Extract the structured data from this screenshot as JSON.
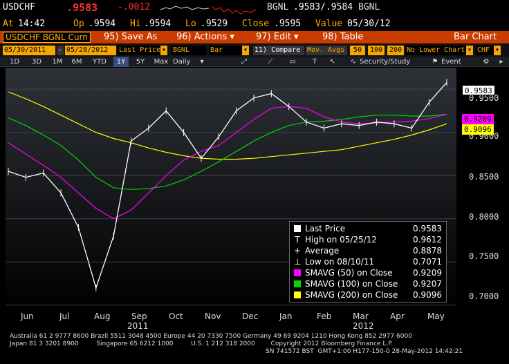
{
  "header": {
    "ticker": "USDCHF",
    "price": ".9583",
    "change": "-.0012",
    "source": "BGNL",
    "bid_ask": ".9583/.9584",
    "source2": "BGNL"
  },
  "quote_line": {
    "at_label": "At",
    "at_value": "14:42",
    "op_label": "Op",
    "op_value": ".9594",
    "hi_label": "Hi",
    "hi_value": ".9594",
    "lo_label": "Lo",
    "lo_value": ".9529",
    "close_label": "Close",
    "close_value": ".9595",
    "value_label": "Value",
    "value_value": "05/30/12"
  },
  "menubar": {
    "title": "USDCHF BGNL Curn",
    "save_as": "95) Save As",
    "actions": "96) Actions ▾",
    "edit": "97) Edit ▾",
    "table": "98) Table",
    "bar_chart": "Bar Chart"
  },
  "options": {
    "start_date": "05/30/2011",
    "end_date": "05/28/2012",
    "field": "Last Price",
    "source": "BGNL",
    "style": "Bar",
    "compare": "11) Compare",
    "mov_avgs": "Mov. Avgs",
    "ma1": "50",
    "ma2": "100",
    "ma3": "200",
    "lower_chart": "No Lower Chart",
    "currency": "CHF"
  },
  "range_tabs": [
    "1D",
    "3D",
    "1M",
    "6M",
    "YTD",
    "1Y",
    "5Y",
    "Max"
  ],
  "range_selected": "1Y",
  "period": "Daily",
  "tools": {
    "security_study": "Security/Study",
    "event": "Event"
  },
  "y_axis": {
    "ticks": [
      "0.9500",
      "0.9000",
      "0.8500",
      "0.8000",
      "0.7500",
      "0.7000"
    ],
    "last_label": "0.9583",
    "ma50_label": "0.9209",
    "ma200_label": "0.9096"
  },
  "x_axis": {
    "months": [
      "Jun",
      "Jul",
      "Aug",
      "Sep",
      "Oct",
      "Nov",
      "Dec",
      "Jan",
      "Feb",
      "Mar",
      "Apr",
      "May"
    ],
    "year1": "2011",
    "year2": "2012"
  },
  "legend": {
    "items": [
      {
        "label": "Last Price",
        "value": "0.9583"
      },
      {
        "label": "High on 05/25/12",
        "value": "0.9612"
      },
      {
        "label": "Average",
        "value": "0.8878"
      },
      {
        "label": "Low on 08/10/11",
        "value": "0.7071"
      },
      {
        "label": "SMAVG (50) on Close",
        "value": "0.9209"
      },
      {
        "label": "SMAVG (100) on Close",
        "value": "0.9207"
      },
      {
        "label": "SMAVG (200) on Close",
        "value": "0.9096"
      }
    ]
  },
  "colors": {
    "price": "#ffffff",
    "ma50": "#ff00ff",
    "ma100": "#00d800",
    "ma200": "#ffff00",
    "accent": "#c83c00",
    "amber": "#ffb000"
  },
  "chart_data": {
    "type": "line",
    "title": "USDCHF BGNL Curn",
    "xlabel": "",
    "ylabel": "",
    "ylim": [
      0.695,
      0.975
    ],
    "x": [
      "2011-06",
      "2011-06",
      "2011-07",
      "2011-07",
      "2011-08",
      "2011-08",
      "2011-08",
      "2011-09",
      "2011-09",
      "2011-10",
      "2011-10",
      "2011-10",
      "2011-11",
      "2011-11",
      "2011-12",
      "2011-12",
      "2012-01",
      "2012-01",
      "2012-02",
      "2012-02",
      "2012-03",
      "2012-03",
      "2012-04",
      "2012-04",
      "2012-05",
      "2012-05"
    ],
    "series": [
      {
        "name": "Last Price",
        "values": [
          0.855,
          0.848,
          0.853,
          0.83,
          0.79,
          0.72,
          0.78,
          0.89,
          0.905,
          0.925,
          0.9,
          0.87,
          0.895,
          0.925,
          0.94,
          0.945,
          0.93,
          0.912,
          0.905,
          0.91,
          0.908,
          0.912,
          0.91,
          0.905,
          0.935,
          0.958
        ]
      },
      {
        "name": "SMAVG (50) on Close",
        "values": [
          0.888,
          0.875,
          0.862,
          0.848,
          0.83,
          0.812,
          0.8,
          0.81,
          0.83,
          0.85,
          0.868,
          0.878,
          0.885,
          0.9,
          0.915,
          0.928,
          0.93,
          0.928,
          0.918,
          0.912,
          0.91,
          0.911,
          0.912,
          0.913,
          0.916,
          0.921
        ]
      },
      {
        "name": "SMAVG (100) on Close",
        "values": [
          0.917,
          0.908,
          0.897,
          0.885,
          0.868,
          0.848,
          0.836,
          0.834,
          0.835,
          0.838,
          0.845,
          0.855,
          0.866,
          0.878,
          0.89,
          0.9,
          0.908,
          0.912,
          0.913,
          0.915,
          0.918,
          0.92,
          0.92,
          0.919,
          0.919,
          0.921
        ]
      },
      {
        "name": "SMAVG (200) on Close",
        "values": [
          0.947,
          0.939,
          0.93,
          0.92,
          0.91,
          0.9,
          0.893,
          0.888,
          0.882,
          0.877,
          0.873,
          0.87,
          0.869,
          0.869,
          0.87,
          0.872,
          0.874,
          0.876,
          0.878,
          0.88,
          0.884,
          0.888,
          0.892,
          0.897,
          0.903,
          0.91
        ]
      }
    ],
    "grid": true,
    "legend_position": "bottom-right"
  }
}
